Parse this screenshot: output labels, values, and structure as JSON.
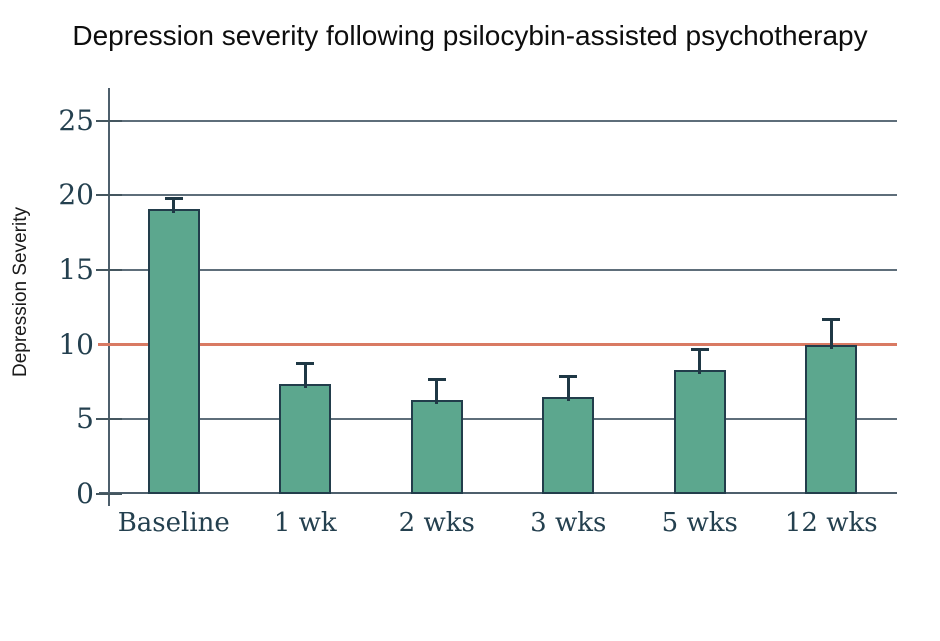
{
  "chart_data": {
    "type": "bar",
    "title": "Depression severity following psilocybin-assisted psychotherapy",
    "ylabel": "Depression Severity",
    "xlabel": "",
    "categories": [
      "Baseline",
      "1 wk",
      "2 wks",
      "3 wks",
      "5 wks",
      "12 wks"
    ],
    "values": [
      19.1,
      7.4,
      6.3,
      6.5,
      8.3,
      10.0
    ],
    "error_plus": [
      0.7,
      1.4,
      1.4,
      1.4,
      1.4,
      1.7
    ],
    "yticks": [
      0,
      5,
      10,
      15,
      20,
      25
    ],
    "ylim": [
      0,
      27.2
    ],
    "grid": "horizontal",
    "legend": "none",
    "reference_line": {
      "y": 10
    },
    "colors": {
      "bar_fill": "#5ca78e",
      "bar_border": "#223d4b",
      "error_bar": "#1f3845",
      "gridline": "#5e6e7a",
      "axis": "#4d5f6c",
      "tick_mark": "#44565f",
      "tick_label": "#24404f",
      "reference": "#d97a63",
      "title": "#0d0d0d",
      "background": "#ffffff"
    }
  }
}
